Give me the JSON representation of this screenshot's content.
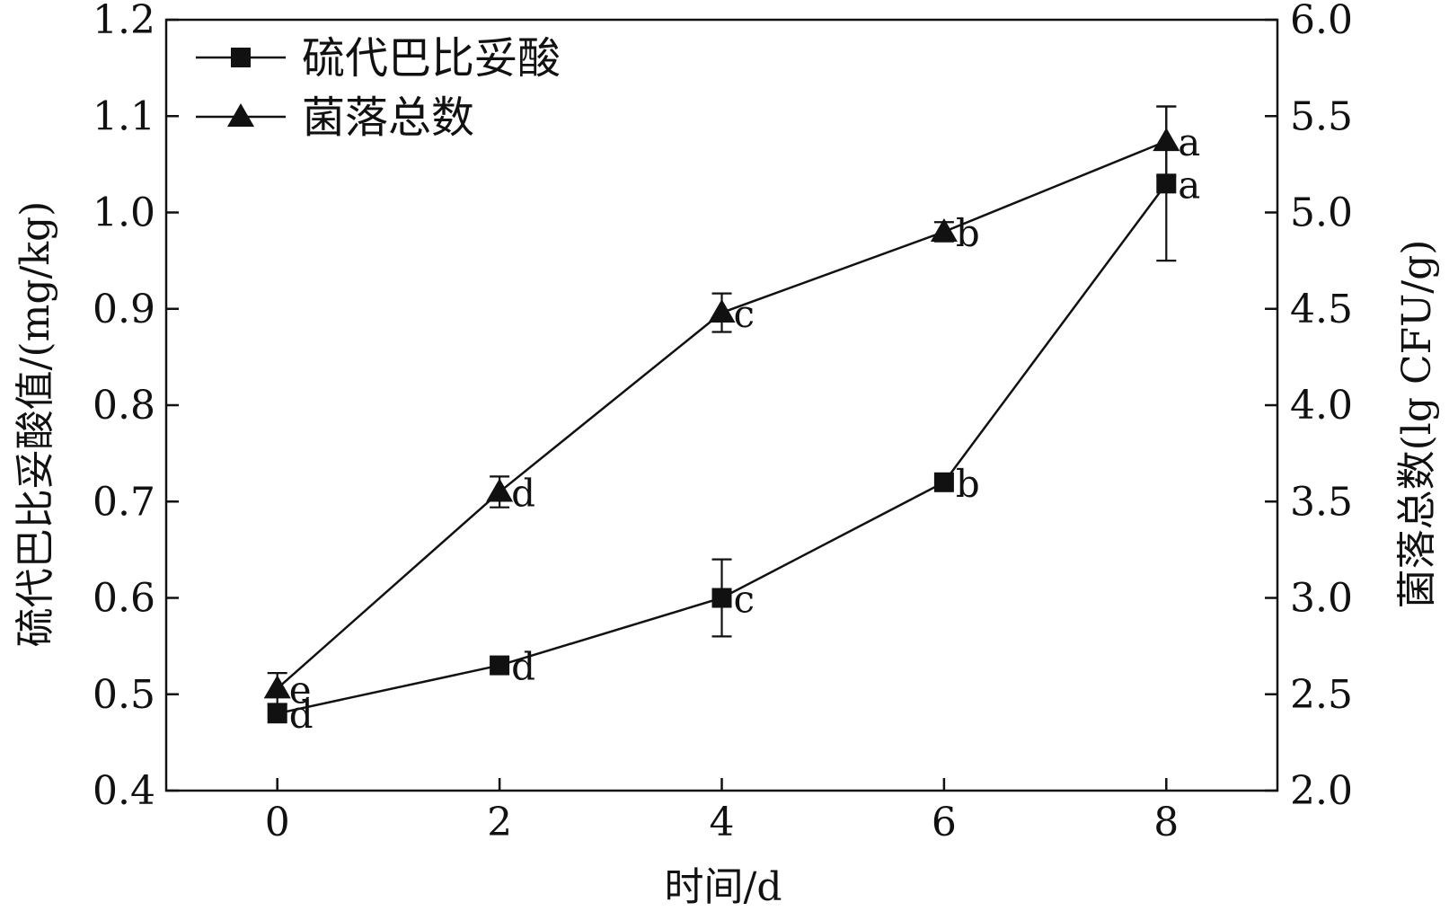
{
  "chart_data": {
    "type": "line",
    "x": [
      0,
      2,
      4,
      6,
      8
    ],
    "xlabel": "时间/d",
    "xlim": [
      -1,
      9
    ],
    "xticks": [
      0,
      2,
      4,
      6,
      8
    ],
    "y_left": {
      "label": "硫代巴比妥酸值/(mg/kg)",
      "lim": [
        0.4,
        1.2
      ],
      "ticks": [
        "0.4",
        "0.5",
        "0.6",
        "0.7",
        "0.8",
        "0.9",
        "1.0",
        "1.1",
        "1.2"
      ]
    },
    "y_right": {
      "label": "菌落总数(lg CFU/g)",
      "lim": [
        2.0,
        6.0
      ],
      "ticks": [
        "2.0",
        "2.5",
        "3.0",
        "3.5",
        "4.0",
        "4.5",
        "5.0",
        "5.5",
        "6.0"
      ]
    },
    "series": [
      {
        "name": "硫代巴比妥酸",
        "axis": "left",
        "marker": "square",
        "values": [
          0.48,
          0.53,
          0.6,
          0.72,
          1.03
        ],
        "errors": [
          0.0,
          0.0,
          0.04,
          0.0,
          0.08
        ],
        "labels": [
          "d",
          "d",
          "c",
          "b",
          "a"
        ]
      },
      {
        "name": "菌落总数",
        "axis": "right",
        "marker": "triangle",
        "values": [
          2.53,
          3.55,
          4.48,
          4.9,
          5.37
        ],
        "errors": [
          0.08,
          0.08,
          0.1,
          0.05,
          0.18
        ],
        "labels": [
          "e",
          "d",
          "c",
          "b",
          "a"
        ]
      }
    ],
    "legend_position": "top-left",
    "grid": false
  }
}
